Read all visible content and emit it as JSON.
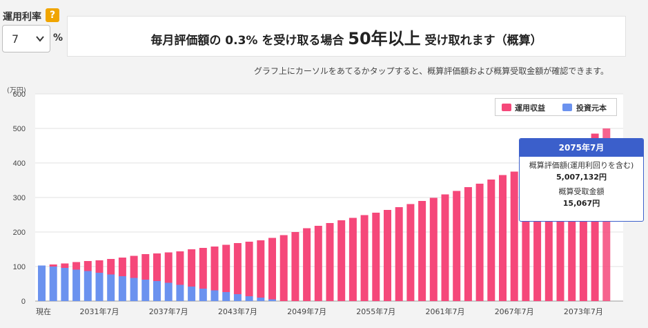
{
  "rate_selector": {
    "label": "運用利率",
    "help_icon_text": "?",
    "selected_value": "7",
    "unit": "%"
  },
  "result": {
    "prefix": "毎月評価額の 0.3% を受け取る場合 ",
    "highlight": "50年以上",
    "suffix": " 受け取れます（概算）"
  },
  "hint_text": "グラフ上にカーソルをあてるかタップすると、概算評価額および概算受取金額が確認できます。",
  "tooltip": {
    "title": "2075年7月",
    "line1_label": "概算評価額(運用利回りを含む)",
    "line1_value": "5,007,132円",
    "line2_label": "概算受取金額",
    "line2_value": "15,067円"
  },
  "colors": {
    "profit": "#f5487a",
    "principal": "#6b92ef",
    "tooltip_header": "#3b5fcb",
    "help_icon": "#f0a500"
  },
  "chart_data": {
    "type": "bar",
    "stacked": true,
    "y_unit_label": "(万円)",
    "ylim": [
      0,
      600
    ],
    "yticks": [
      0,
      100,
      200,
      300,
      400,
      500,
      600
    ],
    "grid": true,
    "legend_position": "top-right",
    "x_tick_labels": [
      "現在",
      "2031年7月",
      "2037年7月",
      "2043年7月",
      "2049年7月",
      "2055年7月",
      "2061年7月",
      "2067年7月",
      "2073年7月"
    ],
    "x_tick_label_bar_index": [
      0,
      5,
      11,
      17,
      23,
      29,
      35,
      41,
      47
    ],
    "series": [
      {
        "name": "運用収益",
        "color": "#f5487a",
        "values": [
          0,
          6,
          13,
          22,
          29,
          36,
          45,
          54,
          64,
          74,
          80,
          88,
          97,
          108,
          118,
          127,
          137,
          148,
          158,
          166,
          178,
          191,
          200,
          211,
          218,
          226,
          234,
          241,
          249,
          256,
          264,
          272,
          281,
          290,
          299,
          309,
          319,
          330,
          340,
          352,
          365,
          375,
          387,
          400,
          412,
          426,
          440,
          455,
          485,
          500
        ]
      },
      {
        "name": "投資元本",
        "color": "#6b92ef",
        "values": [
          103,
          100,
          96,
          91,
          87,
          82,
          77,
          72,
          67,
          62,
          58,
          53,
          47,
          42,
          36,
          31,
          26,
          20,
          14,
          10,
          5,
          0,
          0,
          0,
          0,
          0,
          0,
          0,
          0,
          0,
          0,
          0,
          0,
          0,
          0,
          0,
          0,
          0,
          0,
          0,
          0,
          0,
          0,
          0,
          0,
          0,
          0,
          0,
          0,
          0
        ]
      }
    ]
  }
}
